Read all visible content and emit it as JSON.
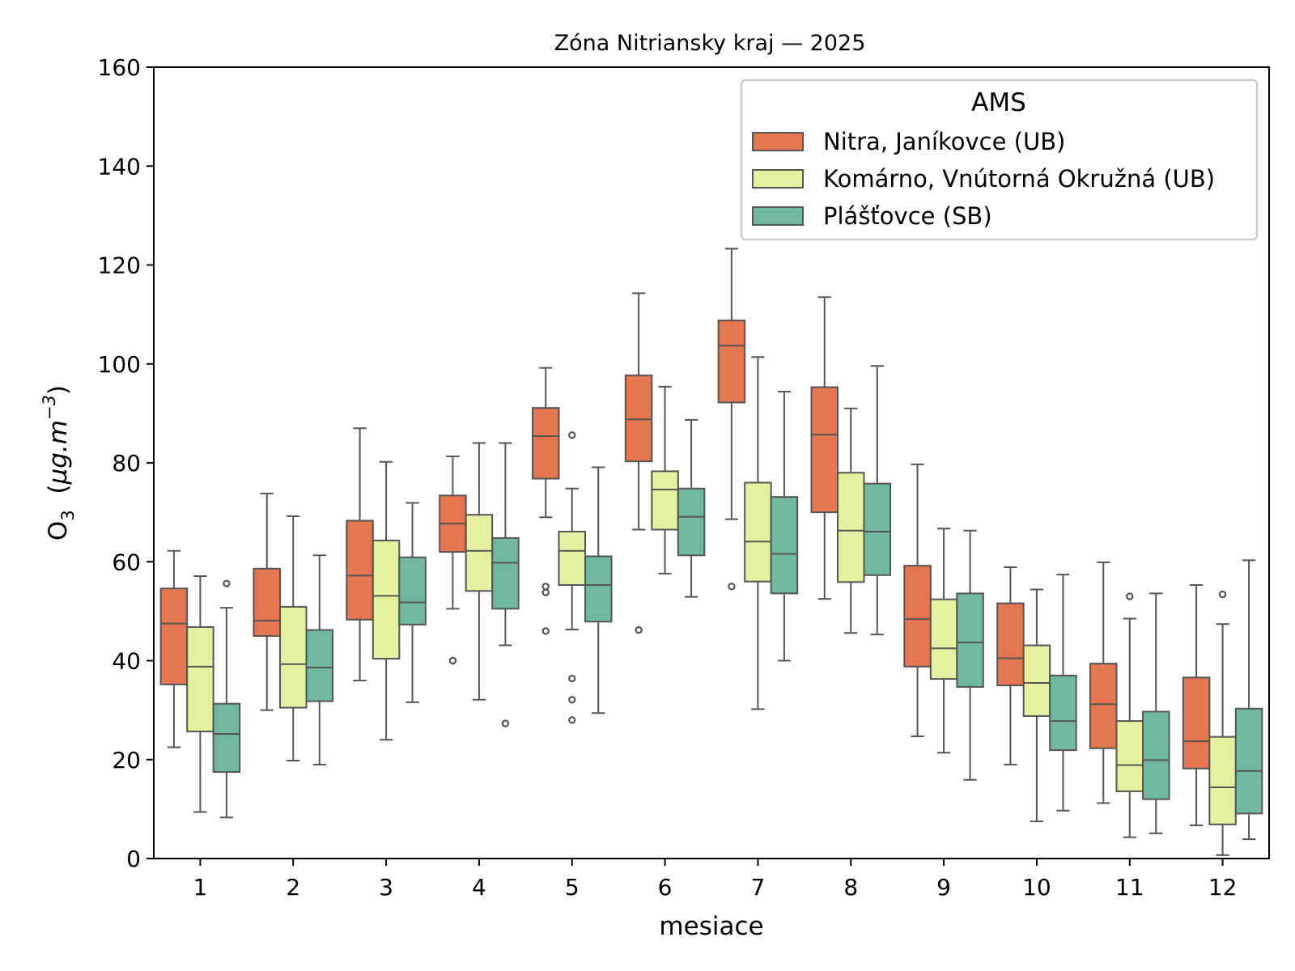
{
  "chart_data": {
    "type": "box",
    "title": "Zóna Nitriansky kraj —  2025",
    "xlabel": "mesiace",
    "ylabel": {
      "base": "O",
      "sub": "3",
      "unit_open": "  (",
      "unit_italic": "μg.m",
      "unit_sup": "−3",
      "unit_close": ")"
    },
    "ylim": [
      0,
      160
    ],
    "yticks": [
      0,
      20,
      40,
      60,
      80,
      100,
      120,
      140,
      160
    ],
    "categories": [
      "1",
      "2",
      "3",
      "4",
      "5",
      "6",
      "7",
      "8",
      "9",
      "10",
      "11",
      "12"
    ],
    "legend": {
      "title": "AMS",
      "position": "upper right"
    },
    "grid": false,
    "series": [
      {
        "name": "Nitra, Janíkovce (UB)",
        "color": "#e5764f",
        "boxes": [
          {
            "whislo": 22.5,
            "q1": 35.2,
            "med": 47.5,
            "q3": 54.6,
            "whishi": 62.2,
            "fliers": []
          },
          {
            "whislo": 30.0,
            "q1": 45.0,
            "med": 48.1,
            "q3": 58.6,
            "whishi": 73.8,
            "fliers": []
          },
          {
            "whislo": 36.0,
            "q1": 48.3,
            "med": 57.2,
            "q3": 68.3,
            "whishi": 87.0,
            "fliers": []
          },
          {
            "whislo": 50.5,
            "q1": 62.0,
            "med": 67.7,
            "q3": 73.4,
            "whishi": 81.3,
            "fliers": [
              40.0
            ]
          },
          {
            "whislo": 69.0,
            "q1": 76.8,
            "med": 85.4,
            "q3": 91.1,
            "whishi": 99.2,
            "fliers": [
              55.0,
              53.8,
              46.0
            ]
          },
          {
            "whislo": 66.5,
            "q1": 80.3,
            "med": 88.8,
            "q3": 97.7,
            "whishi": 114.3,
            "fliers": [
              46.2
            ]
          },
          {
            "whislo": 68.6,
            "q1": 92.2,
            "med": 103.7,
            "q3": 108.8,
            "whishi": 123.3,
            "fliers": [
              55.0
            ]
          },
          {
            "whislo": 52.5,
            "q1": 70.0,
            "med": 85.7,
            "q3": 95.3,
            "whishi": 113.5,
            "fliers": []
          },
          {
            "whislo": 24.7,
            "q1": 38.8,
            "med": 48.4,
            "q3": 59.2,
            "whishi": 79.7,
            "fliers": []
          },
          {
            "whislo": 19.0,
            "q1": 35.0,
            "med": 40.5,
            "q3": 51.6,
            "whishi": 58.9,
            "fliers": []
          },
          {
            "whislo": 11.2,
            "q1": 22.3,
            "med": 31.2,
            "q3": 39.4,
            "whishi": 59.9,
            "fliers": []
          },
          {
            "whislo": 6.7,
            "q1": 18.2,
            "med": 23.7,
            "q3": 36.6,
            "whishi": 55.3,
            "fliers": []
          }
        ]
      },
      {
        "name": "Komárno, Vnútorná Okružná (UB)",
        "color": "#e5f19e",
        "boxes": [
          {
            "whislo": 9.4,
            "q1": 25.7,
            "med": 38.8,
            "q3": 46.8,
            "whishi": 57.1,
            "fliers": []
          },
          {
            "whislo": 19.8,
            "q1": 30.5,
            "med": 39.3,
            "q3": 50.9,
            "whishi": 69.2,
            "fliers": []
          },
          {
            "whislo": 24.0,
            "q1": 40.4,
            "med": 53.1,
            "q3": 64.3,
            "whishi": 80.2,
            "fliers": []
          },
          {
            "whislo": 32.1,
            "q1": 54.1,
            "med": 62.2,
            "q3": 69.5,
            "whishi": 84.0,
            "fliers": []
          },
          {
            "whislo": 46.3,
            "q1": 55.3,
            "med": 62.2,
            "q3": 66.1,
            "whishi": 74.8,
            "fliers": [
              85.6,
              36.4,
              32.1,
              28.0
            ]
          },
          {
            "whislo": 57.6,
            "q1": 66.5,
            "med": 74.6,
            "q3": 78.3,
            "whishi": 95.4,
            "fliers": []
          },
          {
            "whislo": 30.2,
            "q1": 56.0,
            "med": 64.1,
            "q3": 76.0,
            "whishi": 101.4,
            "fliers": []
          },
          {
            "whislo": 45.6,
            "q1": 55.9,
            "med": 66.3,
            "q3": 78.0,
            "whishi": 91.0,
            "fliers": []
          },
          {
            "whislo": 21.4,
            "q1": 36.3,
            "med": 42.5,
            "q3": 52.4,
            "whishi": 66.7,
            "fliers": []
          },
          {
            "whislo": 7.5,
            "q1": 28.8,
            "med": 35.5,
            "q3": 43.1,
            "whishi": 54.4,
            "fliers": []
          },
          {
            "whislo": 4.3,
            "q1": 13.6,
            "med": 18.9,
            "q3": 27.8,
            "whishi": 48.5,
            "fliers": [
              53.0
            ]
          },
          {
            "whislo": 0.7,
            "q1": 6.9,
            "med": 14.4,
            "q3": 24.6,
            "whishi": 47.4,
            "fliers": [
              53.4
            ]
          }
        ]
      },
      {
        "name": "Plášťovce (SB)",
        "color": "#6fb9a1",
        "boxes": [
          {
            "whislo": 8.3,
            "q1": 17.5,
            "med": 25.2,
            "q3": 31.3,
            "whishi": 50.7,
            "fliers": [
              55.6
            ]
          },
          {
            "whislo": 19.0,
            "q1": 31.8,
            "med": 38.6,
            "q3": 46.2,
            "whishi": 61.3,
            "fliers": []
          },
          {
            "whislo": 31.6,
            "q1": 47.3,
            "med": 51.8,
            "q3": 60.9,
            "whishi": 71.9,
            "fliers": []
          },
          {
            "whislo": 43.1,
            "q1": 50.5,
            "med": 59.8,
            "q3": 64.8,
            "whishi": 84.0,
            "fliers": [
              27.3
            ]
          },
          {
            "whislo": 29.4,
            "q1": 47.9,
            "med": 55.3,
            "q3": 61.1,
            "whishi": 79.1,
            "fliers": []
          },
          {
            "whislo": 52.9,
            "q1": 61.3,
            "med": 69.1,
            "q3": 74.8,
            "whishi": 88.7,
            "fliers": []
          },
          {
            "whislo": 40.0,
            "q1": 53.6,
            "med": 61.6,
            "q3": 73.1,
            "whishi": 94.4,
            "fliers": []
          },
          {
            "whislo": 45.3,
            "q1": 57.3,
            "med": 66.1,
            "q3": 75.8,
            "whishi": 99.6,
            "fliers": []
          },
          {
            "whislo": 15.9,
            "q1": 34.7,
            "med": 43.7,
            "q3": 53.6,
            "whishi": 66.3,
            "fliers": []
          },
          {
            "whislo": 9.7,
            "q1": 21.9,
            "med": 27.8,
            "q3": 37.0,
            "whishi": 57.4,
            "fliers": []
          },
          {
            "whislo": 5.1,
            "q1": 12.0,
            "med": 19.9,
            "q3": 29.7,
            "whishi": 53.6,
            "fliers": []
          },
          {
            "whislo": 3.9,
            "q1": 9.1,
            "med": 17.7,
            "q3": 30.3,
            "whishi": 60.3,
            "fliers": []
          }
        ]
      }
    ]
  }
}
